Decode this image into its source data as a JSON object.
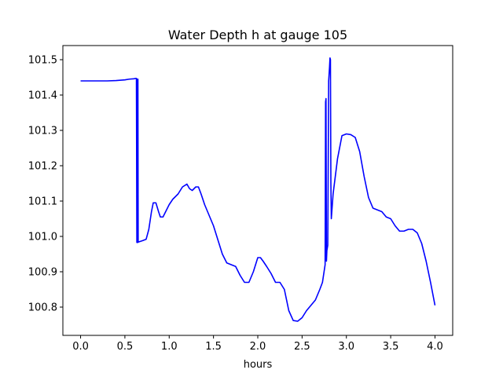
{
  "chart_data": {
    "type": "line",
    "title": "Water Depth h at gauge 105",
    "xlabel": "hours",
    "ylabel": "",
    "xlim": [
      -0.2,
      4.2
    ],
    "ylim": [
      100.72,
      101.54
    ],
    "xticks": [
      0.0,
      0.5,
      1.0,
      1.5,
      2.0,
      2.5,
      3.0,
      3.5,
      4.0
    ],
    "xtick_labels": [
      "0.0",
      "0.5",
      "1.0",
      "1.5",
      "2.0",
      "2.5",
      "3.0",
      "3.5",
      "4.0"
    ],
    "yticks": [
      100.8,
      100.9,
      101.0,
      101.1,
      101.2,
      101.3,
      101.4,
      101.5
    ],
    "ytick_labels": [
      "100.8",
      "100.9",
      "101.0",
      "101.1",
      "101.2",
      "101.3",
      "101.4",
      "101.5"
    ],
    "grid": false,
    "series": [
      {
        "color": "#0000ff",
        "x": [
          0.0,
          0.1,
          0.2,
          0.3,
          0.4,
          0.5,
          0.55,
          0.6,
          0.62,
          0.63,
          0.635,
          0.637,
          0.64,
          0.645,
          0.647,
          0.65,
          0.7,
          0.74,
          0.77,
          0.8,
          0.82,
          0.85,
          0.88,
          0.9,
          0.93,
          0.96,
          1.0,
          1.04,
          1.1,
          1.15,
          1.2,
          1.23,
          1.26,
          1.3,
          1.33,
          1.36,
          1.4,
          1.45,
          1.5,
          1.55,
          1.6,
          1.65,
          1.7,
          1.75,
          1.8,
          1.85,
          1.9,
          1.95,
          2.0,
          2.03,
          2.06,
          2.1,
          2.15,
          2.2,
          2.25,
          2.3,
          2.35,
          2.4,
          2.45,
          2.5,
          2.55,
          2.6,
          2.65,
          2.7,
          2.73,
          2.76,
          2.765,
          2.77,
          2.775,
          2.78,
          2.79,
          2.8,
          2.805,
          2.81,
          2.815,
          2.82,
          2.825,
          2.83,
          2.85,
          2.9,
          2.95,
          3.0,
          3.05,
          3.1,
          3.15,
          3.2,
          3.25,
          3.3,
          3.35,
          3.4,
          3.45,
          3.5,
          3.55,
          3.6,
          3.65,
          3.7,
          3.75,
          3.8,
          3.85,
          3.9,
          3.95,
          4.0
        ],
        "y": [
          101.44,
          101.44,
          101.44,
          101.44,
          101.441,
          101.443,
          101.445,
          101.446,
          101.447,
          101.447,
          100.983,
          101.445,
          101.445,
          100.983,
          101.445,
          100.984,
          100.988,
          100.992,
          101.02,
          101.07,
          101.095,
          101.095,
          101.07,
          101.055,
          101.055,
          101.07,
          101.09,
          101.105,
          101.12,
          101.14,
          101.148,
          101.135,
          101.13,
          101.14,
          101.14,
          101.12,
          101.09,
          101.06,
          101.03,
          100.99,
          100.95,
          100.925,
          100.92,
          100.915,
          100.89,
          100.87,
          100.87,
          100.9,
          100.94,
          100.94,
          100.93,
          100.915,
          100.895,
          100.87,
          100.87,
          100.85,
          100.79,
          100.762,
          100.76,
          100.77,
          100.79,
          100.805,
          100.82,
          100.85,
          100.87,
          100.92,
          101.38,
          101.39,
          100.93,
          100.96,
          100.975,
          101.44,
          101.46,
          101.48,
          101.505,
          101.5,
          101.15,
          101.05,
          101.12,
          101.22,
          101.285,
          101.29,
          101.288,
          101.28,
          101.24,
          101.17,
          101.11,
          101.08,
          101.075,
          101.07,
          101.055,
          101.05,
          101.03,
          101.015,
          101.015,
          101.02,
          101.02,
          101.01,
          100.98,
          100.93,
          100.87,
          100.805
        ]
      }
    ]
  }
}
